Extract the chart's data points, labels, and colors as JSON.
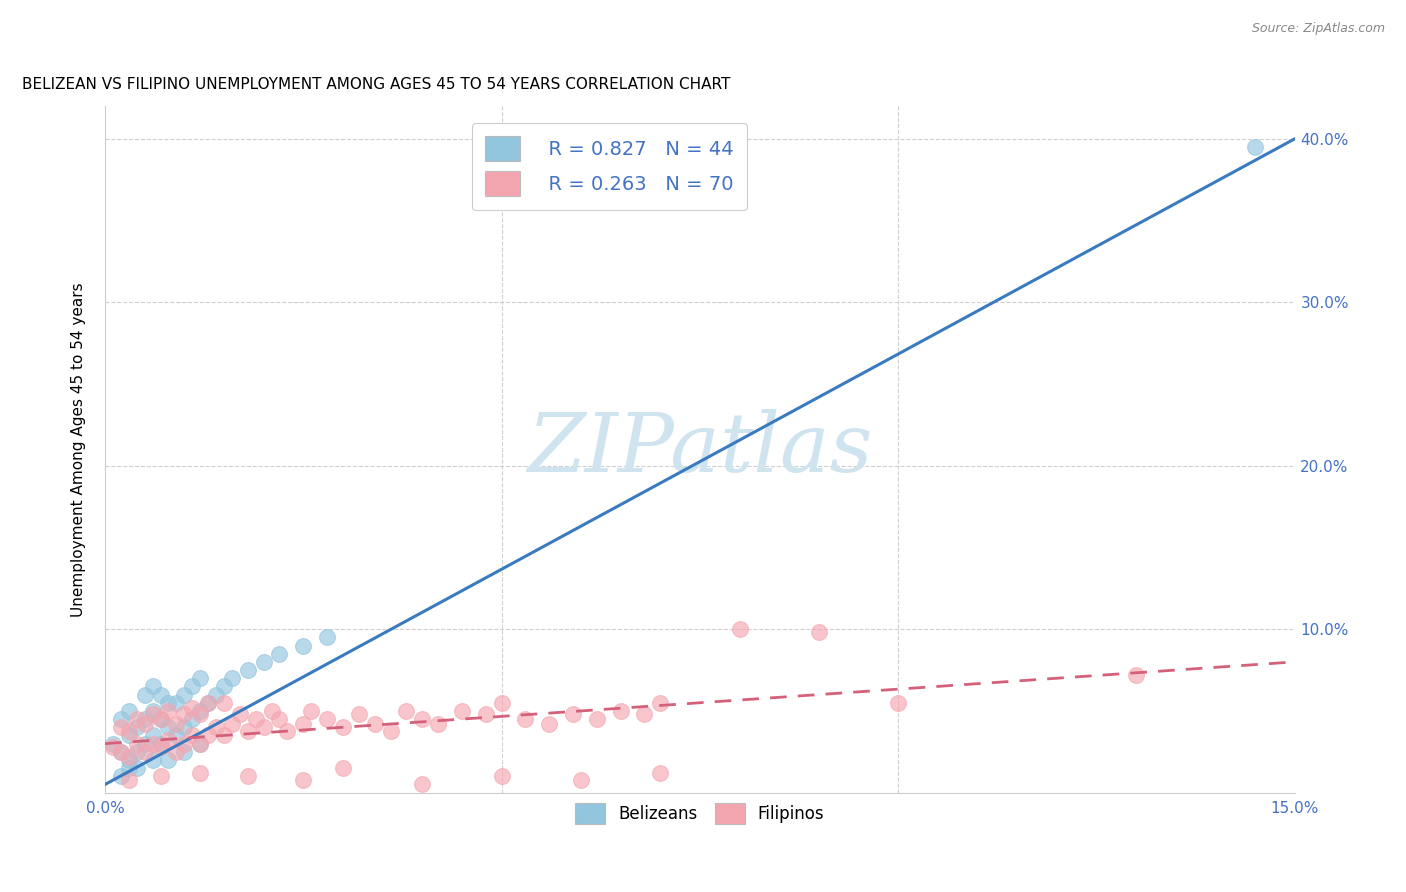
{
  "title": "BELIZEAN VS FILIPINO UNEMPLOYMENT AMONG AGES 45 TO 54 YEARS CORRELATION CHART",
  "source": "Source: ZipAtlas.com",
  "ylabel": "Unemployment Among Ages 45 to 54 years",
  "xlim": [
    0.0,
    0.15
  ],
  "ylim": [
    0.0,
    0.42
  ],
  "belizean_color": "#92c5de",
  "filipino_color": "#f4a6b0",
  "belizean_line_color": "#3a7bbf",
  "filipino_line_color": "#d4607a",
  "watermark_text": "ZIPatlas",
  "watermark_color": "#d0e4f0",
  "legend_R_belize": "R = 0.827",
  "legend_N_belize": "N = 44",
  "legend_R_filipino": "R = 0.263",
  "legend_N_filipino": "N = 70",
  "title_fontsize": 11,
  "axis_fontsize": 11,
  "tick_fontsize": 11,
  "background_color": "#ffffff",
  "grid_color": "#d0d0d0",
  "belizean_scatter_x": [
    0.001,
    0.002,
    0.002,
    0.003,
    0.003,
    0.003,
    0.004,
    0.004,
    0.005,
    0.005,
    0.005,
    0.006,
    0.006,
    0.006,
    0.007,
    0.007,
    0.007,
    0.008,
    0.008,
    0.009,
    0.009,
    0.01,
    0.01,
    0.011,
    0.011,
    0.012,
    0.012,
    0.013,
    0.014,
    0.015,
    0.016,
    0.018,
    0.02,
    0.022,
    0.025,
    0.028,
    0.002,
    0.003,
    0.004,
    0.006,
    0.008,
    0.01,
    0.012,
    0.145
  ],
  "belizean_scatter_y": [
    0.03,
    0.025,
    0.045,
    0.02,
    0.035,
    0.05,
    0.025,
    0.04,
    0.03,
    0.045,
    0.06,
    0.035,
    0.05,
    0.065,
    0.03,
    0.045,
    0.06,
    0.04,
    0.055,
    0.035,
    0.055,
    0.04,
    0.06,
    0.045,
    0.065,
    0.05,
    0.07,
    0.055,
    0.06,
    0.065,
    0.07,
    0.075,
    0.08,
    0.085,
    0.09,
    0.095,
    0.01,
    0.015,
    0.015,
    0.02,
    0.02,
    0.025,
    0.03,
    0.395
  ],
  "belizean_line_x": [
    0.0,
    0.15
  ],
  "belizean_line_y": [
    0.005,
    0.4
  ],
  "filipino_line_x": [
    0.0,
    0.15
  ],
  "filipino_line_y": [
    0.03,
    0.08
  ],
  "filipino_scatter_x": [
    0.001,
    0.002,
    0.002,
    0.003,
    0.003,
    0.004,
    0.004,
    0.005,
    0.005,
    0.006,
    0.006,
    0.007,
    0.007,
    0.008,
    0.008,
    0.009,
    0.009,
    0.01,
    0.01,
    0.011,
    0.011,
    0.012,
    0.012,
    0.013,
    0.013,
    0.014,
    0.015,
    0.015,
    0.016,
    0.017,
    0.018,
    0.019,
    0.02,
    0.021,
    0.022,
    0.023,
    0.025,
    0.026,
    0.028,
    0.03,
    0.032,
    0.034,
    0.036,
    0.038,
    0.04,
    0.042,
    0.045,
    0.048,
    0.05,
    0.053,
    0.056,
    0.059,
    0.062,
    0.065,
    0.068,
    0.07,
    0.003,
    0.007,
    0.012,
    0.018,
    0.025,
    0.03,
    0.04,
    0.05,
    0.06,
    0.07,
    0.08,
    0.09,
    0.1,
    0.13
  ],
  "filipino_scatter_y": [
    0.028,
    0.025,
    0.04,
    0.022,
    0.038,
    0.03,
    0.045,
    0.025,
    0.042,
    0.03,
    0.048,
    0.028,
    0.045,
    0.032,
    0.05,
    0.025,
    0.042,
    0.03,
    0.048,
    0.035,
    0.052,
    0.03,
    0.048,
    0.035,
    0.055,
    0.04,
    0.035,
    0.055,
    0.042,
    0.048,
    0.038,
    0.045,
    0.04,
    0.05,
    0.045,
    0.038,
    0.042,
    0.05,
    0.045,
    0.04,
    0.048,
    0.042,
    0.038,
    0.05,
    0.045,
    0.042,
    0.05,
    0.048,
    0.055,
    0.045,
    0.042,
    0.048,
    0.045,
    0.05,
    0.048,
    0.055,
    0.008,
    0.01,
    0.012,
    0.01,
    0.008,
    0.015,
    0.005,
    0.01,
    0.008,
    0.012,
    0.1,
    0.098,
    0.055,
    0.072
  ]
}
